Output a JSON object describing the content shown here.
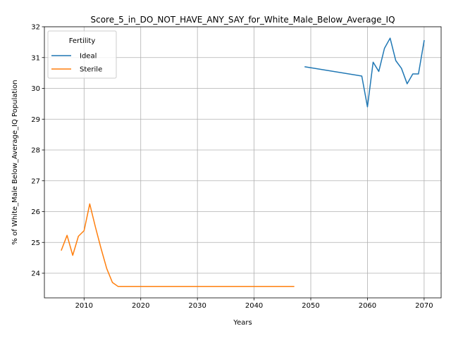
{
  "chart_data": {
    "type": "line",
    "title": "Score_5_in_DO_NOT_HAVE_ANY_SAY_for_White_Male_Below_Average_IQ",
    "xlabel": "Years",
    "ylabel": "% of White_Male Below_Average_IQ Population",
    "xlim": [
      2003,
      2073
    ],
    "ylim": [
      23.2,
      32
    ],
    "xticks": [
      2010,
      2020,
      2030,
      2040,
      2050,
      2060,
      2070
    ],
    "yticks": [
      24,
      25,
      26,
      27,
      28,
      29,
      30,
      31,
      32
    ],
    "grid": true,
    "legend": {
      "title": "Fertility",
      "position": "top-left"
    },
    "series": [
      {
        "name": "Ideal",
        "color": "#1f77b4",
        "x": [
          2049,
          2059,
          2060,
          2061,
          2062,
          2063,
          2064,
          2065,
          2066,
          2067,
          2068,
          2069,
          2070
        ],
        "y": [
          30.7,
          30.4,
          29.4,
          30.85,
          30.55,
          31.3,
          31.63,
          30.9,
          30.65,
          30.15,
          30.47,
          30.47,
          31.55
        ]
      },
      {
        "name": "Sterile",
        "color": "#ff7f0e",
        "x": [
          2006,
          2007,
          2008,
          2009,
          2010,
          2011,
          2012,
          2013,
          2014,
          2015,
          2016,
          2017,
          2020,
          2025,
          2030,
          2035,
          2040,
          2045,
          2047
        ],
        "y": [
          24.75,
          25.23,
          24.58,
          25.2,
          25.38,
          26.25,
          25.5,
          24.8,
          24.15,
          23.7,
          23.57,
          23.57,
          23.57,
          23.57,
          23.57,
          23.57,
          23.57,
          23.57,
          23.57
        ]
      }
    ]
  }
}
